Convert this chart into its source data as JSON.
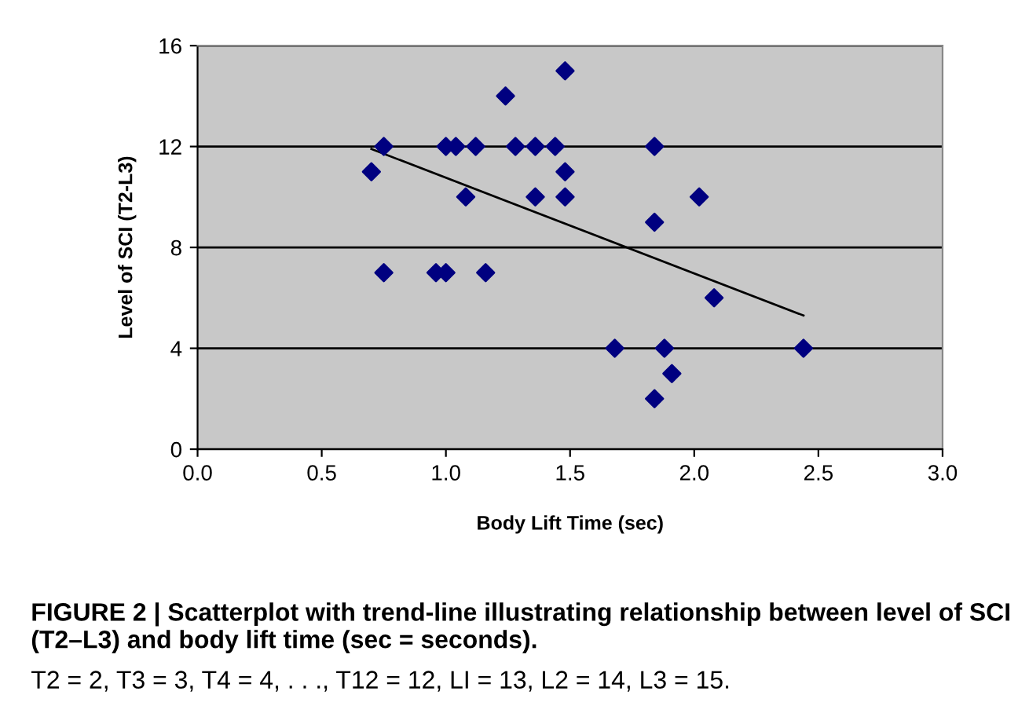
{
  "chart_data": {
    "type": "scatter",
    "xlabel": "Body Lift Time (sec)",
    "ylabel": "Level of SCI (T2-L3)",
    "series": [
      {
        "color": "#000080",
        "marker": "diamond",
        "x": [
          0.7,
          0.75,
          0.75,
          0.96,
          1.0,
          1.0,
          1.04,
          1.08,
          1.12,
          1.16,
          1.24,
          1.28,
          1.36,
          1.36,
          1.44,
          1.48,
          1.48,
          1.48,
          1.84,
          1.84,
          2.02,
          2.08,
          1.68,
          1.88,
          2.44,
          1.91,
          1.84
        ],
        "values": [
          11,
          12,
          7,
          7,
          7,
          12,
          12,
          10,
          12,
          7,
          14,
          12,
          12,
          10,
          12,
          15,
          11,
          10,
          12,
          9,
          10,
          6,
          4,
          4,
          4,
          3,
          2
        ]
      },
      {
        "type": "line",
        "color": "#000000",
        "marker": "none",
        "line_style": "solid",
        "x": [
          0.7,
          2.44
        ],
        "values": [
          11.9,
          5.3
        ]
      }
    ],
    "xlim": [
      0,
      3
    ],
    "xticks": [
      {
        "value": 0,
        "label": "0.0"
      },
      {
        "value": 0.5,
        "label": "0.5"
      },
      {
        "value": 1,
        "label": "1.0"
      },
      {
        "value": 1.5,
        "label": "1.5"
      },
      {
        "value": 2,
        "label": "2.0"
      },
      {
        "value": 2.5,
        "label": "2.5"
      },
      {
        "value": 3,
        "label": "3.0"
      }
    ],
    "ylim": [
      0,
      16
    ],
    "yticks": [
      0,
      4,
      8,
      12,
      16
    ],
    "grid": "y",
    "annotations": [
      "FIGURE 2 | Scatterplot with trend-line illustrating relationship between level of SCI (T2–L3) and body lift time (sec = seconds).",
      "T2 = 2, T3 = 3, T4 = 4, . . ., T12 = 12, LI = 13, L2 = 14, L3 = 15."
    ]
  }
}
